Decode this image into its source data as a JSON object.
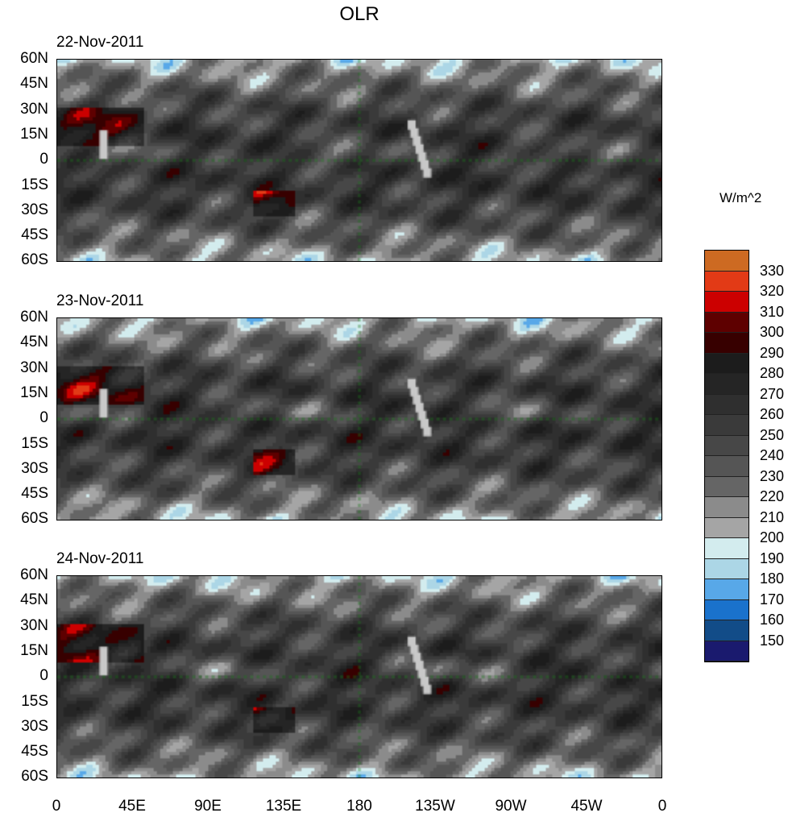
{
  "title": "OLR",
  "panels": [
    {
      "date": "22-Nov-2011"
    },
    {
      "date": "23-Nov-2011"
    },
    {
      "date": "24-Nov-2011"
    }
  ],
  "lat_labels": [
    "60N",
    "45N",
    "30N",
    "15N",
    "0",
    "15S",
    "30S",
    "45S",
    "60S"
  ],
  "lon_labels": [
    "0",
    "45E",
    "90E",
    "135E",
    "180",
    "135W",
    "90W",
    "45W",
    "0"
  ],
  "colorbar": {
    "units": "W/m^2",
    "levels": [
      "330",
      "320",
      "310",
      "300",
      "290",
      "280",
      "270",
      "260",
      "250",
      "240",
      "230",
      "220",
      "210",
      "200",
      "190",
      "180",
      "170",
      "160",
      "150"
    ],
    "colors": [
      "#cd6a22",
      "#e23a16",
      "#cc0000",
      "#5e0000",
      "#370000",
      "#1c1c1c",
      "#252525",
      "#2f2f2f",
      "#3a3a3a",
      "#474747",
      "#555555",
      "#656565",
      "#8b8b8b",
      "#a5a5a5",
      "#d3ecee",
      "#acd6e6",
      "#58a8e8",
      "#1a72cc",
      "#124c88",
      "#1a1a6e"
    ]
  },
  "coast_color": "#1a7a1a"
}
